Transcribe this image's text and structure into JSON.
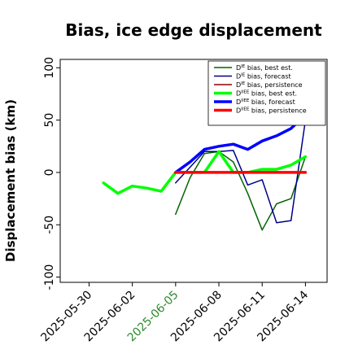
{
  "chart_data": {
    "type": "line",
    "title": "Bias, ice edge displacement",
    "xlabel": "",
    "ylabel": "Displacement bias (km)",
    "xlim": [
      "2025-05-28",
      "2025-06-15T12:00"
    ],
    "ylim": [
      -105,
      108
    ],
    "yticks": [
      -100,
      -50,
      0,
      50,
      100
    ],
    "xticks": [
      {
        "date": "2025-05-30",
        "label": "2025-05-30",
        "color": "#000000"
      },
      {
        "date": "2025-06-02",
        "label": "2025-06-02",
        "color": "#000000"
      },
      {
        "date": "2025-06-05",
        "label": "2025-06-05",
        "color": "#2e8b2e"
      },
      {
        "date": "2025-06-08",
        "label": "2025-06-08",
        "color": "#000000"
      },
      {
        "date": "2025-06-11",
        "label": "2025-06-11",
        "color": "#000000"
      },
      {
        "date": "2025-06-14",
        "label": "2025-06-14",
        "color": "#000000"
      }
    ],
    "grid": false,
    "legend_position": "top-right",
    "series": [
      {
        "name": "bias, best est.",
        "sup": "IE",
        "color": "#006400",
        "width": 1.5,
        "points": [
          [
            "2025-06-05",
            -40
          ],
          [
            "2025-06-06",
            -5
          ],
          [
            "2025-06-07",
            18
          ],
          [
            "2025-06-08",
            20
          ],
          [
            "2025-06-09",
            10
          ],
          [
            "2025-06-10",
            -20
          ],
          [
            "2025-06-11",
            -55
          ],
          [
            "2025-06-12",
            -30
          ],
          [
            "2025-06-13",
            -25
          ],
          [
            "2025-06-14",
            15
          ]
        ]
      },
      {
        "name": "bias, forecast",
        "sup": "IE",
        "color": "#00008b",
        "width": 1.5,
        "points": [
          [
            "2025-06-05",
            -10
          ],
          [
            "2025-06-06",
            5
          ],
          [
            "2025-06-07",
            20
          ],
          [
            "2025-06-08",
            20
          ],
          [
            "2025-06-09",
            21
          ],
          [
            "2025-06-10",
            -12
          ],
          [
            "2025-06-11",
            -7
          ],
          [
            "2025-06-12",
            -48
          ],
          [
            "2025-06-13",
            -46
          ],
          [
            "2025-06-14",
            50
          ]
        ]
      },
      {
        "name": "bias, persistence",
        "sup": "IE",
        "color": "#8b0000",
        "width": 1.5,
        "points": [
          [
            "2025-06-05",
            0
          ],
          [
            "2025-06-14",
            0
          ]
        ]
      },
      {
        "name": "bias, best est.",
        "sup": "IIEE",
        "color": "#00ff00",
        "width": 3.5,
        "points": [
          [
            "2025-05-31",
            -10
          ],
          [
            "2025-06-01",
            -20
          ],
          [
            "2025-06-02",
            -13
          ],
          [
            "2025-06-03",
            -15
          ],
          [
            "2025-06-04",
            -18
          ],
          [
            "2025-06-05",
            0
          ],
          [
            "2025-06-06",
            0
          ],
          [
            "2025-06-07",
            0
          ],
          [
            "2025-06-08",
            20
          ],
          [
            "2025-06-09",
            0
          ],
          [
            "2025-06-10",
            0
          ],
          [
            "2025-06-11",
            3
          ],
          [
            "2025-06-12",
            3
          ],
          [
            "2025-06-13",
            7
          ],
          [
            "2025-06-14",
            15
          ]
        ]
      },
      {
        "name": "bias, forecast",
        "sup": "IIEE",
        "color": "#0000ff",
        "width": 3.5,
        "points": [
          [
            "2025-06-05",
            0
          ],
          [
            "2025-06-06",
            10
          ],
          [
            "2025-06-07",
            22
          ],
          [
            "2025-06-08",
            25
          ],
          [
            "2025-06-09",
            27
          ],
          [
            "2025-06-10",
            22
          ],
          [
            "2025-06-11",
            30
          ],
          [
            "2025-06-12",
            35
          ],
          [
            "2025-06-13",
            42
          ],
          [
            "2025-06-14",
            55
          ]
        ]
      },
      {
        "name": "bias, persistence",
        "sup": "IIEE",
        "color": "#ff0000",
        "width": 3.5,
        "points": [
          [
            "2025-06-05",
            0
          ],
          [
            "2025-06-14",
            0
          ]
        ]
      }
    ]
  },
  "legend_prefix": "D"
}
